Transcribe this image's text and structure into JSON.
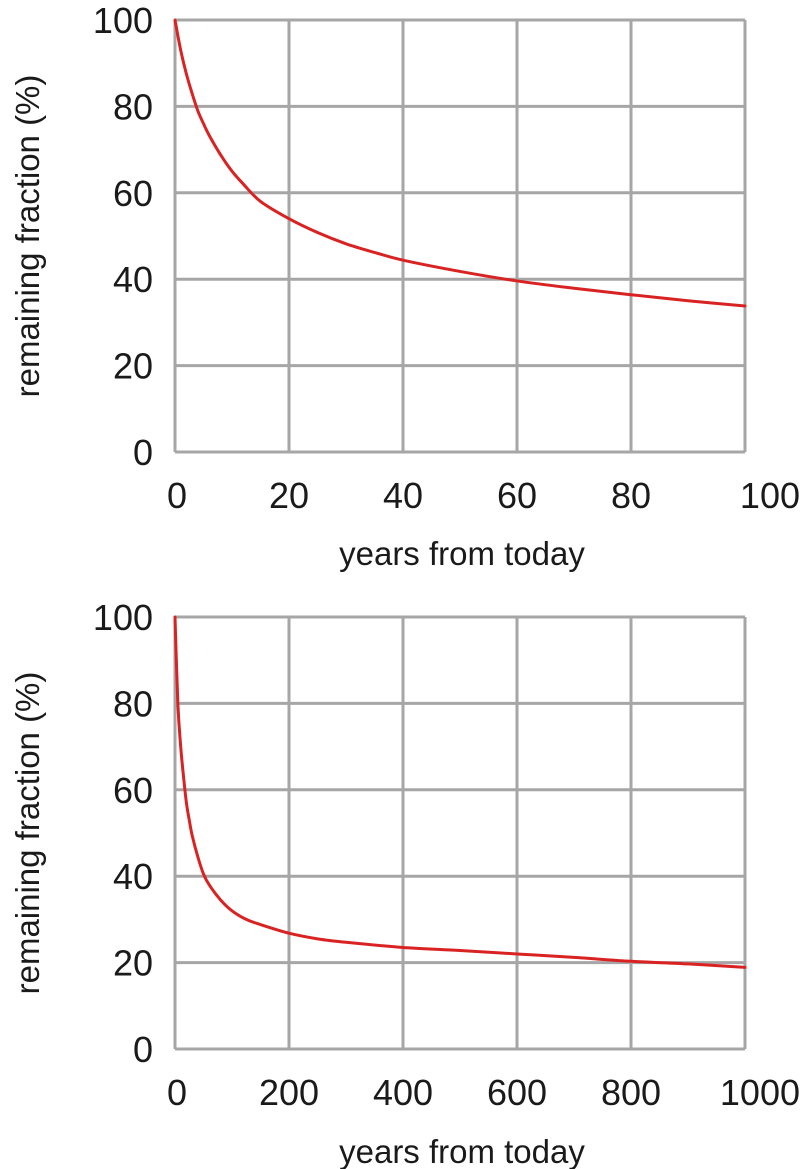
{
  "chart_data": [
    {
      "type": "line",
      "title": "",
      "xlabel": "years from today",
      "ylabel": "remaining fraction (%)",
      "xlim": [
        0,
        100
      ],
      "ylim": [
        0,
        100
      ],
      "xticks": [
        "0",
        "20",
        "40",
        "60",
        "80",
        "100"
      ],
      "yticks": [
        "0",
        "20",
        "40",
        "60",
        "80",
        "100"
      ],
      "grid": true,
      "line_color": "#d92323",
      "series": [
        {
          "x": [
            0,
            1,
            2,
            3,
            4,
            5,
            6,
            8,
            10,
            12,
            15,
            20,
            25,
            30,
            35,
            40,
            50,
            60,
            70,
            80,
            90,
            100
          ],
          "values": [
            100,
            93,
            87.5,
            83,
            79,
            76,
            73.3,
            68.8,
            65,
            62,
            58,
            54,
            50.8,
            48.2,
            46.2,
            44.4,
            41.8,
            39.6,
            37.9,
            36.4,
            35,
            33.8
          ]
        }
      ]
    },
    {
      "type": "line",
      "title": "",
      "xlabel": "years from today",
      "ylabel": "remaining fraction (%)",
      "xlim": [
        0,
        1000
      ],
      "ylim": [
        0,
        100
      ],
      "xticks": [
        "0",
        "200",
        "400",
        "600",
        "800",
        "1000"
      ],
      "yticks": [
        "0",
        "20",
        "40",
        "60",
        "80",
        "100"
      ],
      "grid": true,
      "line_color": "#d92323",
      "series": [
        {
          "x": [
            0,
            5,
            10,
            15,
            20,
            25,
            30,
            40,
            50,
            60,
            80,
            100,
            125,
            150,
            200,
            250,
            300,
            400,
            500,
            600,
            700,
            800,
            900,
            1000
          ],
          "values": [
            100,
            80,
            70,
            63,
            57,
            53,
            49.5,
            44.5,
            40.5,
            38,
            34.5,
            32,
            30,
            28.8,
            26.8,
            25.5,
            24.7,
            23.5,
            22.8,
            22,
            21.2,
            20.3,
            19.7,
            18.9
          ]
        }
      ]
    }
  ]
}
